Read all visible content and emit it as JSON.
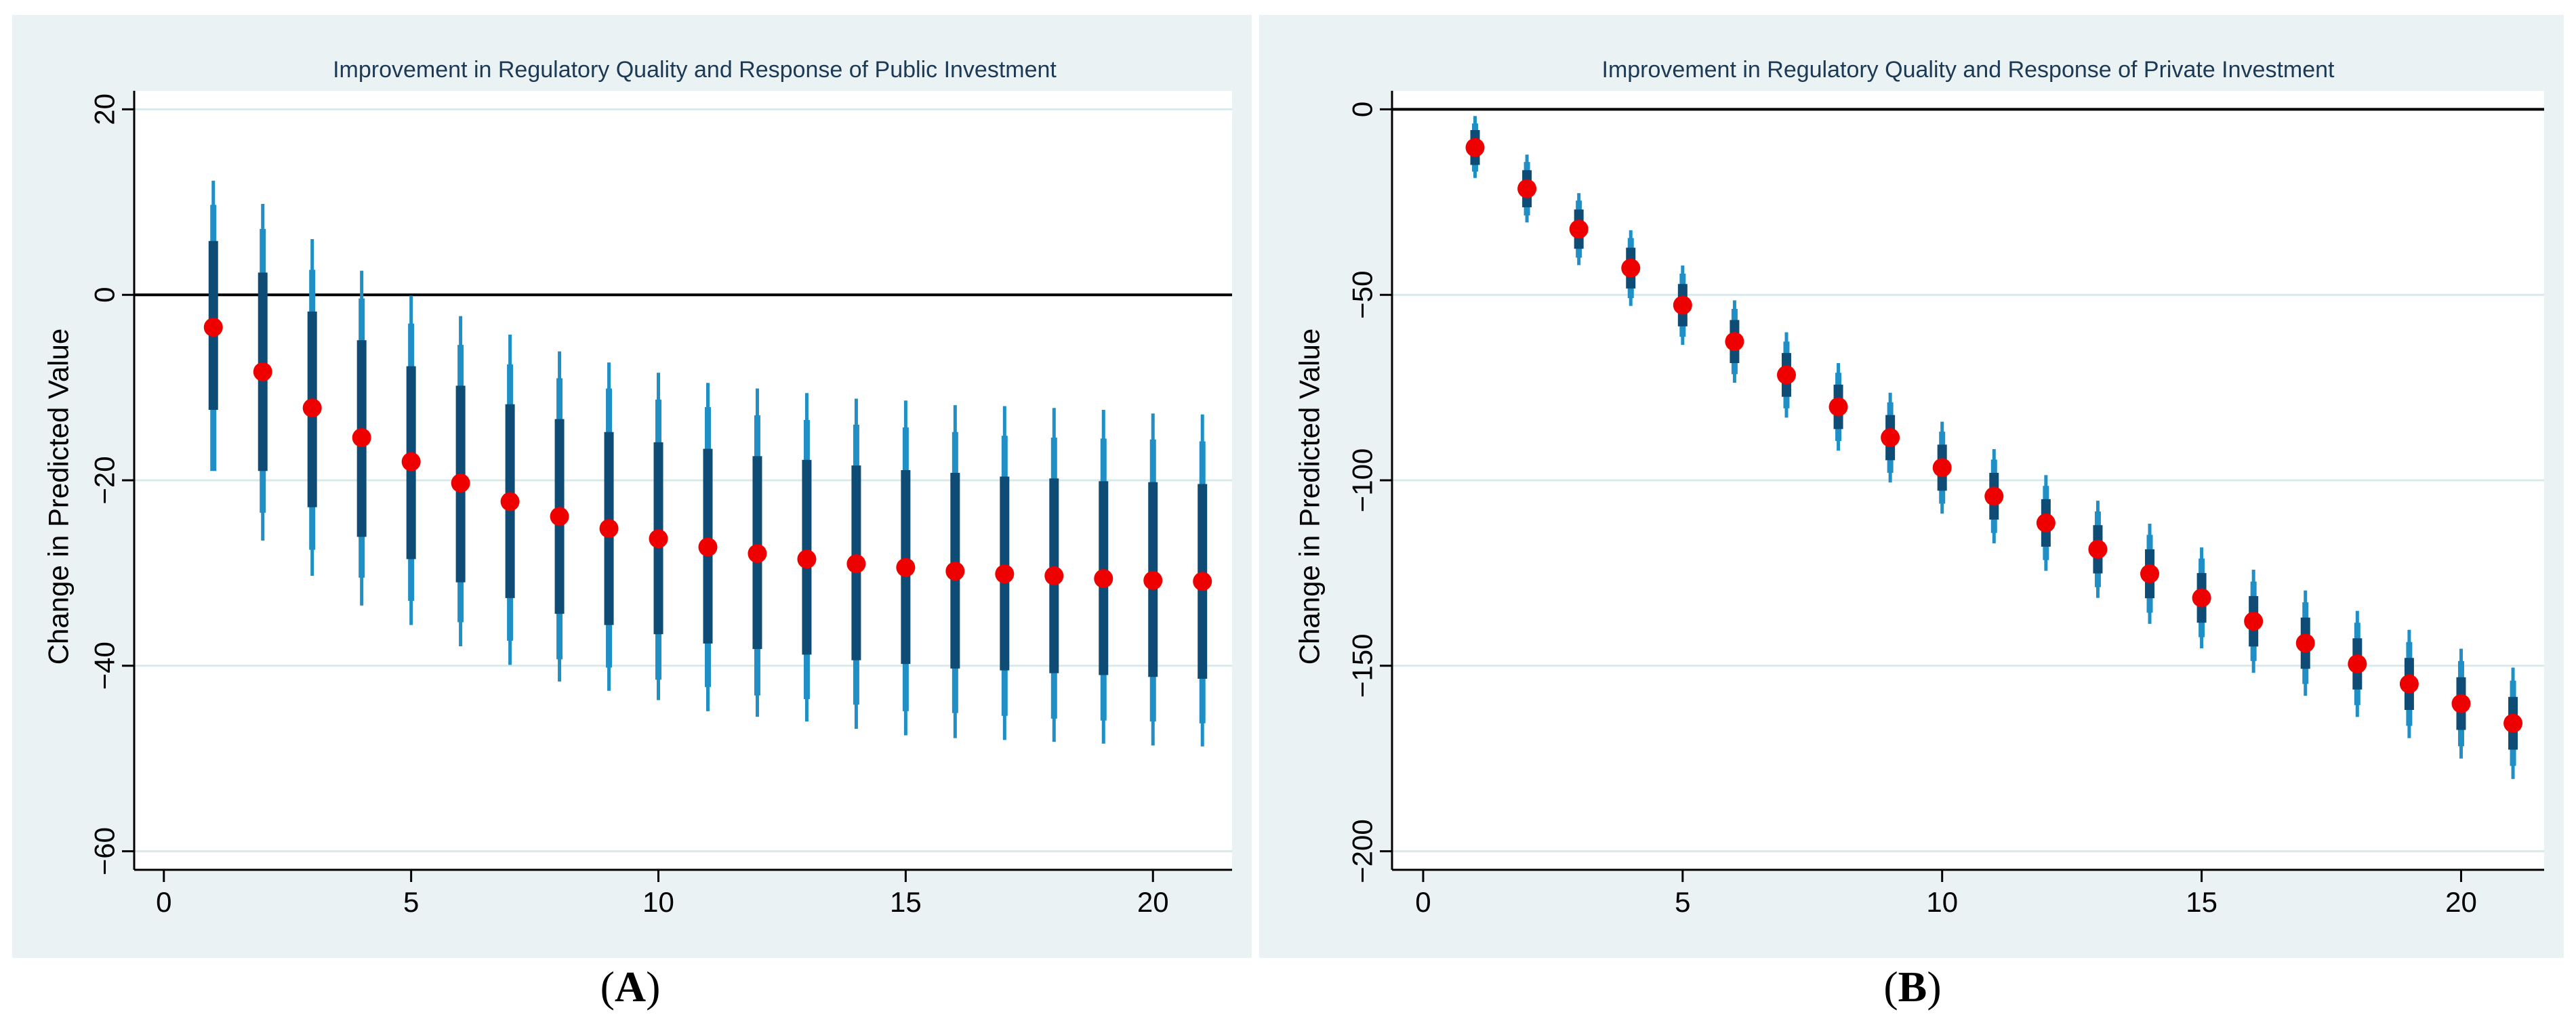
{
  "colors": {
    "panel_bg": "#eaf2f3",
    "plot_bg": "#ffffff",
    "grid": "#d8e9ec",
    "title_text": "#1c3a55",
    "ci_outer": "#1f8fc6",
    "ci_inner": "#0f4c75",
    "point": "#ee0000",
    "zero_line": "#000000"
  },
  "captions": {
    "a": {
      "open": "(",
      "letter": "A",
      "close": ")"
    },
    "b": {
      "open": "(",
      "letter": "B",
      "close": ")"
    }
  },
  "chart_data": [
    {
      "type": "scatter",
      "panel": "A",
      "title": "Improvement in Regulatory Quality and Response of Public Investment",
      "xlabel": "",
      "ylabel": "Change in Predicted Value",
      "xlim": [
        -0.6,
        21.6
      ],
      "ylim": [
        -62,
        22
      ],
      "xticks": [
        0,
        5,
        10,
        15,
        20
      ],
      "xtick_labels": [
        "0",
        "5",
        "10",
        "15",
        "20"
      ],
      "yticks": [
        20,
        0,
        -20,
        -40,
        -60
      ],
      "ytick_labels": [
        "20",
        "0",
        "−20",
        "−40",
        "−60"
      ],
      "grid": true,
      "reference_line": 0,
      "x": [
        1,
        2,
        3,
        4,
        5,
        6,
        7,
        8,
        9,
        10,
        11,
        12,
        13,
        14,
        15,
        16,
        17,
        18,
        19,
        20,
        21
      ],
      "series": [
        {
          "name": "Point estimate",
          "values": [
            -3.5,
            -8.3,
            -12.2,
            -15.4,
            -18.0,
            -20.3,
            -22.3,
            -23.9,
            -25.2,
            -26.3,
            -27.2,
            -27.9,
            -28.5,
            -29.0,
            -29.4,
            -29.8,
            -30.1,
            -30.3,
            -30.6,
            -30.8,
            -30.9
          ]
        },
        {
          "name": "CI 95% lower",
          "values": [
            -16.6,
            -26.5,
            -30.3,
            -33.5,
            -35.6,
            -37.9,
            -39.9,
            -41.7,
            -42.7,
            -43.7,
            -44.9,
            -45.5,
            -46.0,
            -46.8,
            -47.5,
            -47.8,
            -48.0,
            -48.2,
            -48.4,
            -48.6,
            -48.7
          ]
        },
        {
          "name": "CI 95% upper",
          "values": [
            12.3,
            9.8,
            6.0,
            2.6,
            -0.1,
            -2.3,
            -4.3,
            -6.1,
            -7.3,
            -8.4,
            -9.5,
            -10.1,
            -10.6,
            -11.2,
            -11.4,
            -11.9,
            -12.0,
            -12.2,
            -12.4,
            -12.8,
            -12.9
          ]
        },
        {
          "name": "CI 90% lower",
          "values": [
            -19.0,
            -23.5,
            -27.5,
            -30.5,
            -33.0,
            -35.3,
            -37.3,
            -39.3,
            -40.2,
            -41.5,
            -42.3,
            -43.2,
            -43.6,
            -44.2,
            -44.9,
            -45.1,
            -45.4,
            -45.7,
            -45.9,
            -46.0,
            -46.2
          ]
        },
        {
          "name": "CI 90% upper",
          "values": [
            9.7,
            7.1,
            2.7,
            -0.4,
            -3.1,
            -5.4,
            -7.5,
            -9.0,
            -10.1,
            -11.3,
            -12.1,
            -13.0,
            -13.5,
            -14.0,
            -14.3,
            -14.8,
            -15.2,
            -15.4,
            -15.5,
            -15.6,
            -15.8
          ]
        },
        {
          "name": "CI 68% lower",
          "values": [
            -12.4,
            -19.0,
            -22.9,
            -26.1,
            -28.5,
            -31.0,
            -32.7,
            -34.4,
            -35.6,
            -36.6,
            -37.6,
            -38.2,
            -38.8,
            -39.4,
            -39.8,
            -40.3,
            -40.5,
            -40.8,
            -41.0,
            -41.2,
            -41.4
          ]
        },
        {
          "name": "CI 68% upper",
          "values": [
            5.8,
            2.4,
            -1.8,
            -4.9,
            -7.7,
            -9.8,
            -11.8,
            -13.4,
            -14.8,
            -15.9,
            -16.6,
            -17.4,
            -17.8,
            -18.4,
            -18.9,
            -19.2,
            -19.6,
            -19.8,
            -20.1,
            -20.2,
            -20.4
          ]
        }
      ]
    },
    {
      "type": "scatter",
      "panel": "B",
      "title": "Improvement in Regulatory Quality and Response of Private Investment",
      "xlabel": "",
      "ylabel": "Change in Predicted Value",
      "xlim": [
        -0.6,
        21.6
      ],
      "ylim": [
        -205,
        5
      ],
      "xticks": [
        0,
        5,
        10,
        15,
        20
      ],
      "xtick_labels": [
        "0",
        "5",
        "10",
        "15",
        "20"
      ],
      "yticks": [
        0,
        -50,
        -100,
        -150,
        -200
      ],
      "ytick_labels": [
        "0",
        "−50",
        "−100",
        "−150",
        "−200"
      ],
      "grid": true,
      "reference_line": 0,
      "x": [
        1,
        2,
        3,
        4,
        5,
        6,
        7,
        8,
        9,
        10,
        11,
        12,
        13,
        14,
        15,
        16,
        17,
        18,
        19,
        20,
        21
      ],
      "series": [
        {
          "name": "Point estimate",
          "values": [
            -10.3,
            -21.4,
            -32.3,
            -42.8,
            -52.8,
            -62.6,
            -71.6,
            -80.2,
            -88.5,
            -96.6,
            -104.3,
            -111.5,
            -118.6,
            -125.2,
            -131.7,
            -138.0,
            -143.9,
            -149.5,
            -154.9,
            -160.2,
            -165.5
          ]
        },
        {
          "name": "CI 95% lower",
          "values": [
            -18.5,
            -30.5,
            -42.0,
            -53.0,
            -63.5,
            -73.7,
            -83.1,
            -92.0,
            -100.6,
            -109.0,
            -117.0,
            -124.4,
            -131.7,
            -138.7,
            -145.3,
            -151.9,
            -158.1,
            -163.8,
            -169.5,
            -175.0,
            -180.5
          ]
        },
        {
          "name": "CI 95% upper",
          "values": [
            -1.8,
            -12.2,
            -22.6,
            -32.6,
            -42.1,
            -51.5,
            -60.1,
            -68.4,
            -76.4,
            -84.2,
            -91.6,
            -98.6,
            -105.5,
            -111.7,
            -118.1,
            -124.1,
            -129.7,
            -135.2,
            -140.3,
            -145.4,
            -150.5
          ]
        },
        {
          "name": "CI 90% lower",
          "values": [
            -16.8,
            -28.6,
            -40.0,
            -50.9,
            -61.3,
            -71.4,
            -80.6,
            -89.4,
            -98.0,
            -106.3,
            -114.2,
            -121.5,
            -128.8,
            -135.7,
            -142.3,
            -148.7,
            -154.9,
            -160.6,
            -166.2,
            -171.7,
            -177.0
          ]
        },
        {
          "name": "CI 90% upper",
          "values": [
            -3.8,
            -14.2,
            -24.6,
            -34.7,
            -44.3,
            -53.8,
            -62.6,
            -71.0,
            -79.0,
            -86.9,
            -94.4,
            -101.5,
            -108.4,
            -114.7,
            -121.1,
            -127.3,
            -132.9,
            -138.4,
            -143.6,
            -148.7,
            -154.0
          ]
        },
        {
          "name": "CI 68% lower",
          "values": [
            -15.0,
            -26.4,
            -37.6,
            -48.3,
            -58.5,
            -68.4,
            -77.5,
            -86.2,
            -94.6,
            -102.8,
            -110.6,
            -117.9,
            -125.1,
            -131.8,
            -138.4,
            -144.8,
            -150.8,
            -156.4,
            -161.9,
            -167.3,
            -172.6
          ]
        },
        {
          "name": "CI 68% upper",
          "values": [
            -5.6,
            -16.4,
            -27.0,
            -37.3,
            -47.1,
            -56.8,
            -65.7,
            -74.2,
            -82.4,
            -90.4,
            -98.0,
            -105.1,
            -112.1,
            -118.6,
            -125.0,
            -131.2,
            -137.0,
            -142.6,
            -147.9,
            -153.1,
            -158.4
          ]
        }
      ]
    }
  ]
}
